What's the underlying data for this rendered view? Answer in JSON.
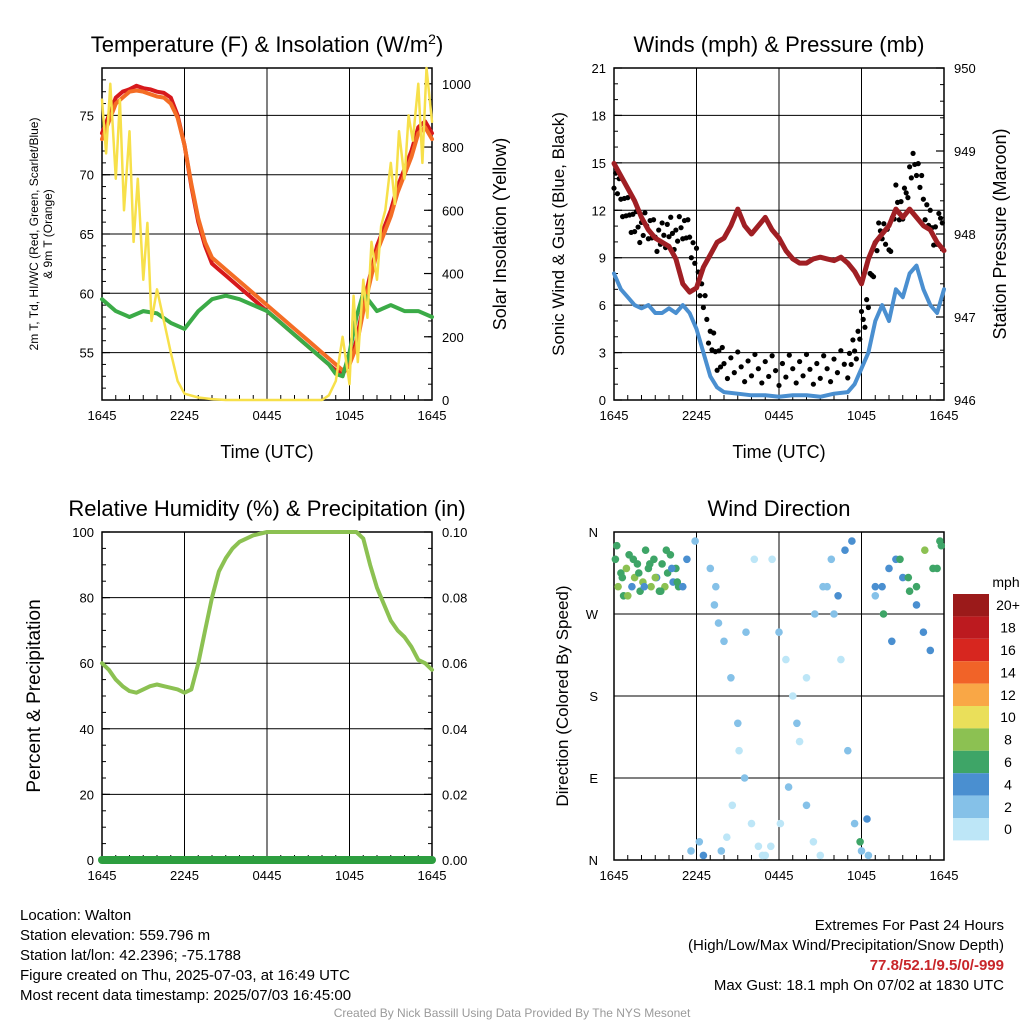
{
  "chart_data": [
    {
      "type": "line",
      "title": "Temperature (F) & Insolation (W/m²)",
      "xlabel": "Time (UTC)",
      "ylabel_left_lines": [
        "2m T, Td, HI/WC (Red, Green, Scarlet/Blue)",
        "& 9m T (Orange)"
      ],
      "ylabel_right": "Solar Insolation (Yellow)",
      "x_ticks": [
        "1645",
        "2245",
        "0445",
        "1045",
        "1645"
      ],
      "ylim_left": [
        51,
        79
      ],
      "y_ticks_left": [
        55,
        60,
        65,
        70,
        75
      ],
      "ylim_right": [
        0,
        1050
      ],
      "y_ticks_right": [
        0,
        200,
        400,
        600,
        800,
        1000
      ],
      "series": [
        {
          "axis": "left",
          "color": "#d7191c",
          "x": [
            0,
            0.5,
            1,
            1.5,
            2,
            2.5,
            3,
            3.5,
            4,
            4.5,
            5,
            5.5,
            6,
            6.5,
            7,
            7.5,
            8,
            8.5,
            9,
            10,
            11,
            12,
            13,
            14,
            15,
            16,
            17,
            17.5,
            18,
            18.5,
            19,
            19.5,
            20,
            20.5,
            21,
            21.5,
            22,
            22.5,
            23,
            23.5,
            24
          ],
          "values": [
            73.5,
            75,
            76.5,
            77,
            77.2,
            77.5,
            77.3,
            77.2,
            77,
            76.9,
            76.5,
            75,
            72.5,
            69,
            66,
            64,
            62.5,
            62,
            61.5,
            60.5,
            59.5,
            58.5,
            57.5,
            56.5,
            55.5,
            54.5,
            53.5,
            53.2,
            54,
            56,
            59,
            61.5,
            64,
            65.5,
            67,
            69,
            70.5,
            72,
            74,
            74.5,
            73.5
          ]
        },
        {
          "axis": "left",
          "color": "#f46d25",
          "x": [
            0,
            0.5,
            1,
            1.5,
            2,
            2.5,
            3,
            3.5,
            4,
            4.5,
            5,
            5.5,
            6,
            6.5,
            7,
            7.5,
            8,
            8.5,
            9,
            10,
            11,
            12,
            13,
            14,
            15,
            16,
            17,
            17.5,
            18,
            18.5,
            19,
            19.5,
            20,
            20.5,
            21,
            21.5,
            22,
            22.5,
            23,
            23.5,
            24
          ],
          "values": [
            73,
            74.5,
            76,
            76.5,
            77,
            77.1,
            77,
            76.8,
            76.6,
            76.5,
            76,
            74.8,
            72.5,
            69.2,
            66.3,
            64.3,
            63,
            62.5,
            62,
            61,
            60,
            59,
            58,
            57,
            56,
            55,
            54,
            53.5,
            54,
            55.5,
            58.5,
            61,
            63.5,
            65,
            66.5,
            68.5,
            70,
            71.5,
            73.5,
            74,
            73
          ]
        },
        {
          "axis": "left",
          "color": "#3bab47",
          "x": [
            0,
            1,
            2,
            3,
            4,
            5,
            6,
            7,
            8,
            9,
            10,
            11,
            12,
            13,
            14,
            15,
            16,
            16.5,
            17,
            17.5,
            18,
            18.5,
            19,
            20,
            21,
            22,
            23,
            24
          ],
          "values": [
            59.5,
            58.5,
            58,
            58.5,
            58.3,
            57.5,
            57,
            58.5,
            59.5,
            59.8,
            59.5,
            59,
            58.5,
            57.5,
            56.5,
            55.5,
            54.5,
            54,
            53.2,
            53,
            55,
            58,
            60,
            58.5,
            59,
            58.5,
            58.5,
            58
          ]
        },
        {
          "axis": "right",
          "color": "#f7e04a",
          "x": [
            0,
            0.3,
            0.6,
            1,
            1.3,
            1.6,
            2,
            2.3,
            2.6,
            3,
            3.3,
            3.6,
            4,
            4.5,
            5,
            5.5,
            6,
            7,
            8,
            9,
            10,
            11,
            12,
            13,
            14,
            15,
            16,
            16.5,
            17,
            17.5,
            18,
            18.3,
            18.6,
            19,
            19.3,
            19.6,
            20,
            20.3,
            20.6,
            21,
            21.3,
            21.6,
            22,
            22.3,
            22.6,
            23,
            23.3,
            23.6,
            24
          ],
          "values": [
            950,
            780,
            1000,
            700,
            950,
            600,
            850,
            500,
            700,
            380,
            560,
            250,
            350,
            250,
            150,
            60,
            20,
            8,
            3,
            0,
            0,
            0,
            0,
            0,
            0,
            0,
            0,
            15,
            60,
            200,
            50,
            330,
            120,
            380,
            260,
            500,
            380,
            550,
            600,
            750,
            620,
            850,
            700,
            900,
            820,
            1000,
            750,
            1050,
            880
          ]
        }
      ]
    },
    {
      "type": "line",
      "title": "Winds (mph) & Pressure (mb)",
      "xlabel": "Time (UTC)",
      "ylabel_left": "Sonic Wind & Gust (Blue, Black)",
      "ylabel_right": "Station Pressure (Maroon)",
      "x_ticks": [
        "1645",
        "2245",
        "0445",
        "1045",
        "1645"
      ],
      "ylim_left": [
        0,
        21
      ],
      "y_ticks_left": [
        0,
        3,
        6,
        9,
        12,
        15,
        18,
        21
      ],
      "ylim_right": [
        946,
        950
      ],
      "y_ticks_right": [
        946,
        947,
        948,
        949,
        950
      ],
      "series": [
        {
          "axis": "left",
          "color": "#4a8fd0",
          "x": [
            0,
            0.5,
            1,
            1.5,
            2,
            2.5,
            3,
            3.5,
            4,
            4.5,
            5,
            5.5,
            6,
            6.5,
            7,
            7.5,
            8,
            9,
            10,
            11,
            12,
            13,
            14,
            15,
            16,
            17,
            17.5,
            18,
            18.5,
            19,
            19.5,
            20,
            20.5,
            21,
            21.5,
            22,
            22.5,
            23,
            23.5,
            24
          ],
          "values": [
            8,
            7,
            6.5,
            6,
            5.8,
            6,
            5.5,
            5.5,
            5.8,
            5.5,
            6,
            5.5,
            4.5,
            3,
            1.5,
            0.8,
            0.5,
            0.4,
            0.3,
            0.3,
            0.2,
            0.3,
            0.3,
            0.2,
            0.4,
            0.5,
            1,
            2,
            3,
            5,
            6,
            5,
            7,
            6.5,
            8,
            8.5,
            7,
            6,
            5.5,
            7
          ]
        },
        {
          "axis": "right",
          "color": "#a01f24",
          "x": [
            0,
            0.5,
            1,
            1.5,
            2,
            2.5,
            3,
            3.5,
            4,
            4.5,
            5,
            5.5,
            6,
            6.5,
            7,
            7.5,
            8,
            8.5,
            9,
            9.5,
            10,
            10.5,
            11,
            11.5,
            12,
            12.5,
            13,
            13.5,
            14,
            14.5,
            15,
            15.5,
            16,
            16.5,
            17,
            17.5,
            18,
            18.5,
            19,
            19.5,
            20,
            20.5,
            21,
            21.5,
            22,
            22.5,
            23,
            23.5,
            24
          ],
          "values": [
            948.85,
            948.7,
            948.55,
            948.4,
            948.2,
            948.05,
            947.95,
            947.9,
            947.85,
            947.7,
            947.4,
            947.3,
            947.35,
            947.6,
            947.75,
            947.9,
            947.95,
            948.1,
            948.3,
            948.1,
            948.0,
            948.1,
            948.2,
            948.05,
            947.95,
            947.8,
            947.7,
            947.65,
            947.65,
            947.7,
            947.72,
            947.7,
            947.68,
            947.72,
            947.65,
            947.55,
            947.4,
            947.7,
            947.9,
            948.0,
            948.1,
            948.3,
            948.2,
            948.3,
            948.2,
            948.1,
            948.05,
            947.9,
            947.8
          ]
        }
      ]
    },
    {
      "type": "line",
      "title": "Relative Humidity (%) & Precipitation (in)",
      "ylabel_left": "Percent & Precipitation",
      "x_ticks": [
        "1645",
        "2245",
        "0445",
        "1045",
        "1645"
      ],
      "ylim_left": [
        0,
        100
      ],
      "y_ticks_left": [
        0,
        20,
        40,
        60,
        80,
        100
      ],
      "ylim_right": [
        0,
        0.1
      ],
      "y_ticks_right": [
        "0.00",
        "0.02",
        "0.04",
        "0.06",
        "0.08",
        "0.10"
      ],
      "series": [
        {
          "axis": "left",
          "color": "#8cc152",
          "x": [
            0,
            0.5,
            1,
            1.5,
            2,
            2.5,
            3,
            3.5,
            4,
            4.5,
            5,
            5.5,
            6,
            6.5,
            7,
            7.5,
            8,
            8.5,
            9,
            9.5,
            10,
            11,
            12,
            13,
            14,
            15,
            16,
            17,
            18,
            18.5,
            19,
            19.5,
            20,
            20.5,
            21,
            21.5,
            22,
            22.5,
            23,
            23.5,
            24
          ],
          "values": [
            60,
            58,
            55,
            53,
            51.5,
            51,
            52,
            53,
            53.5,
            53,
            52.5,
            52,
            51,
            52,
            60,
            70,
            80,
            88,
            92,
            95,
            97,
            99,
            100,
            100,
            100,
            100,
            100,
            100,
            100,
            100,
            98,
            90,
            83,
            78,
            73,
            70,
            68,
            65,
            61,
            60,
            58
          ]
        },
        {
          "axis": "left",
          "color": "#2d9e3f",
          "x": [
            0,
            24
          ],
          "values": [
            0,
            0
          ]
        }
      ]
    },
    {
      "type": "scatter",
      "title": "Wind Direction",
      "ylabel": "Direction (Colored By Speed)",
      "x_ticks": [
        "1645",
        "2245",
        "0445",
        "1045",
        "1645"
      ],
      "y_ticks": [
        "N",
        "E",
        "S",
        "W",
        "N"
      ],
      "legend_title": "mph",
      "legend_labels": [
        "0",
        "2",
        "4",
        "6",
        "8",
        "10",
        "12",
        "14",
        "16",
        "18",
        "20+"
      ],
      "legend_colors": [
        "#bde6f7",
        "#85c1e8",
        "#4a8fd0",
        "#3ea567",
        "#8cc152",
        "#eadf5a",
        "#f9a746",
        "#f16328",
        "#d7261f",
        "#bc1a1f",
        "#9b1a1a"
      ],
      "points_description": "wind direction in degrees per observation; speed class index into legend_colors",
      "x": [
        0.1,
        0.3,
        0.5,
        0.7,
        0.9,
        1.1,
        1.3,
        1.5,
        1.7,
        1.9,
        2.1,
        2.3,
        2.5,
        2.7,
        2.9,
        3.1,
        3.3,
        3.5,
        3.7,
        3.9,
        4.1,
        4.3,
        4.5,
        4.7,
        0.2,
        0.6,
        1.0,
        1.4,
        1.8,
        2.2,
        2.6,
        3.0,
        3.4,
        3.8,
        4.2,
        4.6,
        5.0,
        5.3,
        5.6,
        5.9,
        6.2,
        6.5,
        7.0,
        7.3,
        7.6,
        8.0,
        8.5,
        9.0,
        9.5,
        10.0,
        10.5,
        11.0,
        11.5,
        12.0,
        12.5,
        13.0,
        13.5,
        14.0,
        14.5,
        15.0,
        15.5,
        16.0,
        16.5,
        17.0,
        17.5,
        18.0,
        18.5,
        19.0,
        19.5,
        20.0,
        20.5,
        21.0,
        21.5,
        22.0,
        22.5,
        23.0,
        23.5,
        23.8,
        7.4,
        7.8,
        8.2,
        8.6,
        9.1,
        9.6,
        10.2,
        10.8,
        11.4,
        12.1,
        12.7,
        13.3,
        14.0,
        14.6,
        15.2,
        15.8,
        16.3,
        16.8,
        17.3,
        17.9,
        18.4,
        19.0,
        19.6,
        20.2,
        20.8,
        21.4,
        22.0,
        22.6,
        23.2,
        23.7
      ],
      "direction": [
        330,
        300,
        315,
        290,
        320,
        335,
        300,
        310,
        325,
        295,
        305,
        340,
        320,
        300,
        330,
        310,
        295,
        325,
        300,
        315,
        335,
        305,
        320,
        300,
        345,
        310,
        290,
        330,
        315,
        300,
        325,
        310,
        295,
        340,
        320,
        305,
        300,
        330,
        10,
        350,
        20,
        5,
        320,
        280,
        260,
        240,
        200,
        150,
        90,
        40,
        15,
        5,
        330,
        250,
        220,
        180,
        130,
        60,
        20,
        5,
        300,
        270,
        220,
        120,
        40,
        10,
        5,
        290,
        300,
        320,
        330,
        310,
        295,
        280,
        250,
        230,
        320,
        345,
        300,
        10,
        25,
        60,
        120,
        250,
        330,
        5,
        15,
        40,
        80,
        150,
        200,
        270,
        300,
        330,
        290,
        340,
        350,
        20,
        45,
        300,
        270,
        240,
        330,
        310,
        300,
        340,
        320,
        350
      ],
      "speed_class": [
        3,
        4,
        3,
        3,
        4,
        3,
        2,
        4,
        3,
        3,
        4,
        3,
        3,
        4,
        3,
        2,
        3,
        3,
        4,
        3,
        3,
        2,
        3,
        3,
        3,
        3,
        4,
        3,
        3,
        2,
        3,
        4,
        3,
        3,
        2,
        3,
        2,
        2,
        1,
        1,
        1,
        2,
        1,
        1,
        1,
        1,
        1,
        1,
        1,
        0,
        0,
        0,
        0,
        1,
        0,
        0,
        0,
        1,
        0,
        0,
        1,
        1,
        0,
        1,
        1,
        1,
        1,
        1,
        2,
        2,
        2,
        2,
        3,
        2,
        2,
        2,
        3,
        3,
        1,
        1,
        0,
        0,
        0,
        1,
        0,
        0,
        0,
        0,
        1,
        1,
        0,
        1,
        1,
        1,
        2,
        2,
        2,
        3,
        2,
        2,
        3,
        2,
        3,
        3,
        3,
        4,
        3,
        3
      ]
    }
  ],
  "info": {
    "location": "Location: Walton",
    "elevation": "Station elevation: 559.796 m",
    "latlon": "Station lat/lon: 42.2396; -75.1788",
    "created": "Figure created on Thu, 2025-07-03, at 16:49 UTC",
    "recent": "Most recent data timestamp: 2025/07/03 16:45:00"
  },
  "extremes": {
    "title": "Extremes For Past 24 Hours",
    "legend": "(High/Low/Max Wind/Precipitation/Snow Depth)",
    "values": "77.8/52.1/9.5/0/-999",
    "gust": "Max Gust: 18.1 mph On 07/02 at 1830 UTC"
  },
  "credit": "Created By Nick Bassill Using Data Provided By The NYS Mesonet"
}
